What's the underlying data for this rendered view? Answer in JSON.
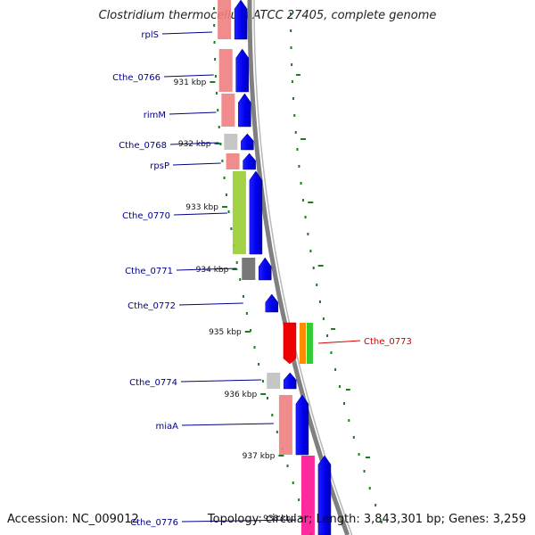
{
  "title": "Clostridium thermocellum ATCC 27405, complete genome",
  "footer": {
    "accession": "Accession: NC_009012",
    "summary": "Topology: circular; Length: 3,843,301 bp; Genes: 3,259"
  },
  "ruler": [
    {
      "label": "931 kbp"
    },
    {
      "label": "932 kbp"
    },
    {
      "label": "933 kbp"
    },
    {
      "label": "934 kbp"
    },
    {
      "label": "935 kbp"
    },
    {
      "label": "936 kbp"
    },
    {
      "label": "937 kbp"
    },
    {
      "label": "938 kbp"
    }
  ],
  "genes": [
    {
      "name": "rplS",
      "strand": "-",
      "feature_color": "#f08080"
    },
    {
      "name": "Cthe_0766",
      "strand": "-",
      "feature_color": "#f08080"
    },
    {
      "name": "rimM",
      "strand": "-",
      "feature_color": "#f08080"
    },
    {
      "name": "Cthe_0768",
      "strand": "-",
      "feature_color": "#c0c0c0"
    },
    {
      "name": "rpsP",
      "strand": "-",
      "feature_color": "#f08080"
    },
    {
      "name": "Cthe_0770",
      "strand": "-",
      "feature_color": "#9acd32"
    },
    {
      "name": "Cthe_0771",
      "strand": "-",
      "feature_color": "#696969"
    },
    {
      "name": "Cthe_0772",
      "strand": "-",
      "feature_color": null
    },
    {
      "name": "Cthe_0773",
      "strand": "+",
      "feature_color": "#ff0000",
      "highlight": true
    },
    {
      "name": "Cthe_0774",
      "strand": "-",
      "feature_color": "#c0c0c0"
    },
    {
      "name": "miaA",
      "strand": "-",
      "feature_color": "#f08080"
    },
    {
      "name": "Cthe_0776",
      "strand": "-",
      "feature_color": "#ff1493"
    }
  ],
  "colors": {
    "gene_label": "#00008b",
    "highlight_label": "#d40000",
    "cds_arrow": "#0000ff",
    "backbone": "#808080",
    "tick": "#1a7f1a"
  }
}
